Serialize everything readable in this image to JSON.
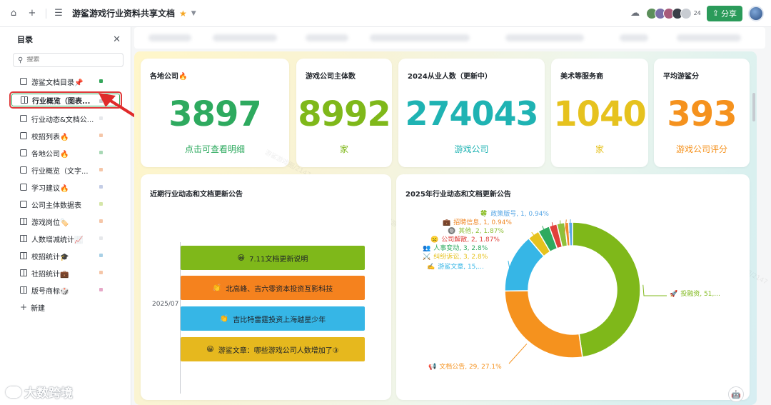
{
  "topbar": {
    "home_icon": "home-icon",
    "add_icon": "plus-icon",
    "menu_icon": "menu-icon",
    "title": "游鲨游戏行业资料共享文档",
    "collaborator_count": "24",
    "share_label": "分享"
  },
  "sidebar": {
    "title": "目录",
    "search_placeholder": "搜索",
    "items": [
      {
        "label": "游鲨文档目录📌",
        "icon": "doc-icon",
        "dot": "#34a65a",
        "active": false
      },
      {
        "label": "行业概览（图表...",
        "icon": "grid-icon",
        "dot": "#c9ccd1",
        "active": true
      },
      {
        "label": "行业动态&文档公...",
        "icon": "doc-icon",
        "dot": "#e6e8eb",
        "active": false
      },
      {
        "label": "校招列表🔥",
        "icon": "table-icon",
        "dot": "#f5c6a8",
        "active": false
      },
      {
        "label": "各地公司🔥",
        "icon": "table-icon",
        "dot": "#a8d8b5",
        "active": false
      },
      {
        "label": "行业概览（文字...",
        "icon": "doc-icon",
        "dot": "#f5c6a8",
        "active": false
      },
      {
        "label": "学习建议🔥",
        "icon": "doc-icon",
        "dot": "#c4cde6",
        "active": false
      },
      {
        "label": "公司主体数据表",
        "icon": "table-icon",
        "dot": "#d5e6a8",
        "active": false
      },
      {
        "label": "游戏岗位🏷️",
        "icon": "grid-icon",
        "dot": "#f5c6a8",
        "active": false
      },
      {
        "label": "人数增减统计📈",
        "icon": "grid-icon",
        "dot": "#e6e8eb",
        "active": false
      },
      {
        "label": "校招统计🎓",
        "icon": "grid-icon",
        "dot": "#a8d0e6",
        "active": false
      },
      {
        "label": "社招统计💼",
        "icon": "grid-icon",
        "dot": "#f5c6a8",
        "active": false
      },
      {
        "label": "版号商标🎲",
        "icon": "grid-icon",
        "dot": "#e6a8c8",
        "active": false
      }
    ],
    "new_label": "新建",
    "brand": "大数跨境"
  },
  "kpis": [
    {
      "title": "各地公司🔥",
      "value": "3897",
      "sub": "点击可查看明细",
      "color": "#2eaa5f"
    },
    {
      "title": "游戏公司主体数",
      "value": "8992",
      "sub": "家",
      "color": "#7fb81a"
    },
    {
      "title": "2024从业人数（更新中）",
      "value": "274043",
      "sub": "游戏公司",
      "color": "#1fb3b3"
    },
    {
      "title": "美术等服务商",
      "value": "1040",
      "sub": "家",
      "color": "#e6c21e"
    },
    {
      "title": "平均游鲨分",
      "value": "393",
      "sub": "游戏公司评分",
      "color": "#f5921e"
    }
  ],
  "timeline": {
    "title": "近期行业动态和文档更新公告",
    "date": "2025/07",
    "items": [
      {
        "emoji": "😀",
        "text": "7.11文档更新说明",
        "color": "#7fb81a"
      },
      {
        "emoji": "👏",
        "text": "北高峰、吉六零资本投资互影科技",
        "color": "#f5821e"
      },
      {
        "emoji": "👏",
        "text": "吉比特雷霆投资上海越星少年",
        "color": "#36b6e6"
      },
      {
        "emoji": "😀",
        "text": "游鲨文章：哪些游戏公司人数增加了③",
        "color": "#e6b81e"
      }
    ]
  },
  "chart_data": {
    "type": "pie",
    "title": "2025年行业动态和文档更新公告",
    "slices": [
      {
        "label": "投融资, 51,...",
        "value": 51,
        "color": "#7fb81a",
        "emoji": "🚀"
      },
      {
        "label": "文档公告, 29, 27.1%",
        "value": 29,
        "color": "#f5921e",
        "emoji": "📢"
      },
      {
        "label": "游鲨文章, 15,...",
        "value": 15,
        "color": "#36b6e6",
        "emoji": "✍️"
      },
      {
        "label": "纠纷诉讼, 3, 2.8%",
        "value": 3,
        "color": "#e6c21e",
        "emoji": "⚔️"
      },
      {
        "label": "人事变动, 3, 2.8%",
        "value": 3,
        "color": "#2eaa5f",
        "emoji": "👥"
      },
      {
        "label": "公司解散, 2, 1.87%",
        "value": 2,
        "color": "#e0403a",
        "emoji": "☹️"
      },
      {
        "label": "其他, 2, 1.87%",
        "value": 2,
        "color": "#8fc03a",
        "emoji": "🔘"
      },
      {
        "label": "招聘信息, 1, 0.94%",
        "value": 1,
        "color": "#f08a2a",
        "emoji": "💼"
      },
      {
        "label": "政策版号, 1, 0.94%",
        "value": 1,
        "color": "#5aa8e6",
        "emoji": "🍀"
      }
    ]
  }
}
